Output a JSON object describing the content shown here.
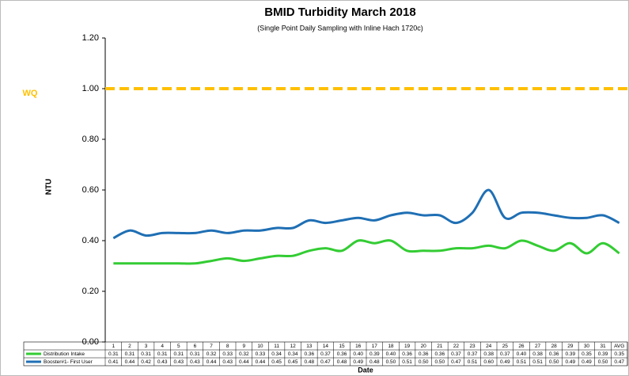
{
  "chart_data": {
    "type": "line",
    "title": "BMID Turbidity March 2018",
    "subtitle": "(Single Point Daily Sampling with Inline Hach 1720c)",
    "y_label": "NTU",
    "x_label": "Date",
    "categories": [
      "1",
      "2",
      "3",
      "4",
      "5",
      "6",
      "7",
      "8",
      "9",
      "10",
      "11",
      "12",
      "13",
      "14",
      "15",
      "16",
      "17",
      "18",
      "19",
      "20",
      "21",
      "22",
      "23",
      "24",
      "25",
      "26",
      "27",
      "28",
      "29",
      "30",
      "31",
      "AVG"
    ],
    "series": [
      {
        "name": "Distribution Intake",
        "color": "#33cc33",
        "values": [
          0.31,
          0.31,
          0.31,
          0.31,
          0.31,
          0.31,
          0.32,
          0.33,
          0.32,
          0.33,
          0.34,
          0.34,
          0.36,
          0.37,
          0.36,
          0.4,
          0.39,
          0.4,
          0.36,
          0.36,
          0.36,
          0.37,
          0.37,
          0.38,
          0.37,
          0.4,
          0.38,
          0.36,
          0.39,
          0.35,
          0.39,
          0.35
        ],
        "value_labels": [
          "0.31",
          "0.31",
          "0.31",
          "0.31",
          "0.31",
          "0.31",
          "0.32",
          "0.33",
          "0.32",
          "0.33",
          "0.34",
          "0.34",
          "0.36",
          "0.37",
          "0.36",
          "0.40",
          "0.39",
          "0.40",
          "0.36",
          "0.36",
          "0.36",
          "0.37",
          "0.37",
          "0.38",
          "0.37",
          "0.40",
          "0.38",
          "0.36",
          "0.39",
          "0.35",
          "0.39",
          "0.35"
        ]
      },
      {
        "name": "Booster#1- First User",
        "color": "#1f6fb4",
        "values": [
          0.41,
          0.44,
          0.42,
          0.43,
          0.43,
          0.43,
          0.44,
          0.43,
          0.44,
          0.44,
          0.45,
          0.45,
          0.48,
          0.47,
          0.48,
          0.49,
          0.48,
          0.5,
          0.51,
          0.5,
          0.5,
          0.47,
          0.51,
          0.6,
          0.49,
          0.51,
          0.51,
          0.5,
          0.49,
          0.49,
          0.5,
          0.47
        ],
        "value_labels": [
          "0.41",
          "0.44",
          "0.42",
          "0.43",
          "0.43",
          "0.43",
          "0.44",
          "0.43",
          "0.44",
          "0.44",
          "0.45",
          "0.45",
          "0.48",
          "0.47",
          "0.48",
          "0.49",
          "0.48",
          "0.50",
          "0.51",
          "0.50",
          "0.50",
          "0.47",
          "0.51",
          "0.60",
          "0.49",
          "0.51",
          "0.51",
          "0.50",
          "0.49",
          "0.49",
          "0.50",
          "0.47"
        ]
      }
    ],
    "threshold": {
      "label": "WQ",
      "value": 1.0,
      "color": "#ffc000"
    },
    "ylim": [
      0,
      1.2
    ],
    "yticks": [
      {
        "value": 0,
        "label": "0.00"
      },
      {
        "value": 0.2,
        "label": "0.20"
      },
      {
        "value": 0.4,
        "label": "0.40"
      },
      {
        "value": 0.6,
        "label": "0.60"
      },
      {
        "value": 0.8,
        "label": "0.80"
      },
      {
        "value": 1.0,
        "label": "1.00"
      },
      {
        "value": 1.2,
        "label": "1.20"
      }
    ]
  }
}
